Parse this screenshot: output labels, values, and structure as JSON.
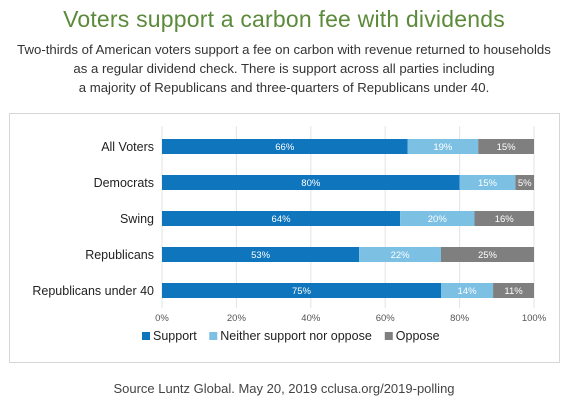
{
  "header": {
    "title": "Voters support a carbon fee with dividends",
    "subtitle_lines": [
      "Two-thirds of American voters support a fee on carbon with revenue returned to households",
      "as a regular dividend check. There is  support across all parties including",
      "a majority of Republicans and three-quarters of Republicans under 40."
    ]
  },
  "chart_data": {
    "type": "bar",
    "orientation": "horizontal",
    "stacked": true,
    "categories": [
      "All Voters",
      "Democrats",
      "Swing",
      "Republicans",
      "Republicans under 40"
    ],
    "series": [
      {
        "name": "Support",
        "values": [
          66,
          80,
          64,
          53,
          75
        ],
        "color": "#0f75bc"
      },
      {
        "name": "Neither support nor oppose",
        "values": [
          19,
          15,
          20,
          22,
          14
        ],
        "color": "#7cc0e4"
      },
      {
        "name": "Oppose",
        "values": [
          15,
          5,
          16,
          25,
          11
        ],
        "color": "#7f7f7f"
      }
    ],
    "value_suffix": "%",
    "xlim": [
      0,
      100
    ],
    "x_ticks": [
      "0%",
      "20%",
      "40%",
      "60%",
      "80%",
      "100%"
    ],
    "grid": true,
    "legend": "bottom"
  },
  "footer": {
    "source": "Source Luntz Global. May 20, 2019 cclusa.org/2019-polling"
  }
}
